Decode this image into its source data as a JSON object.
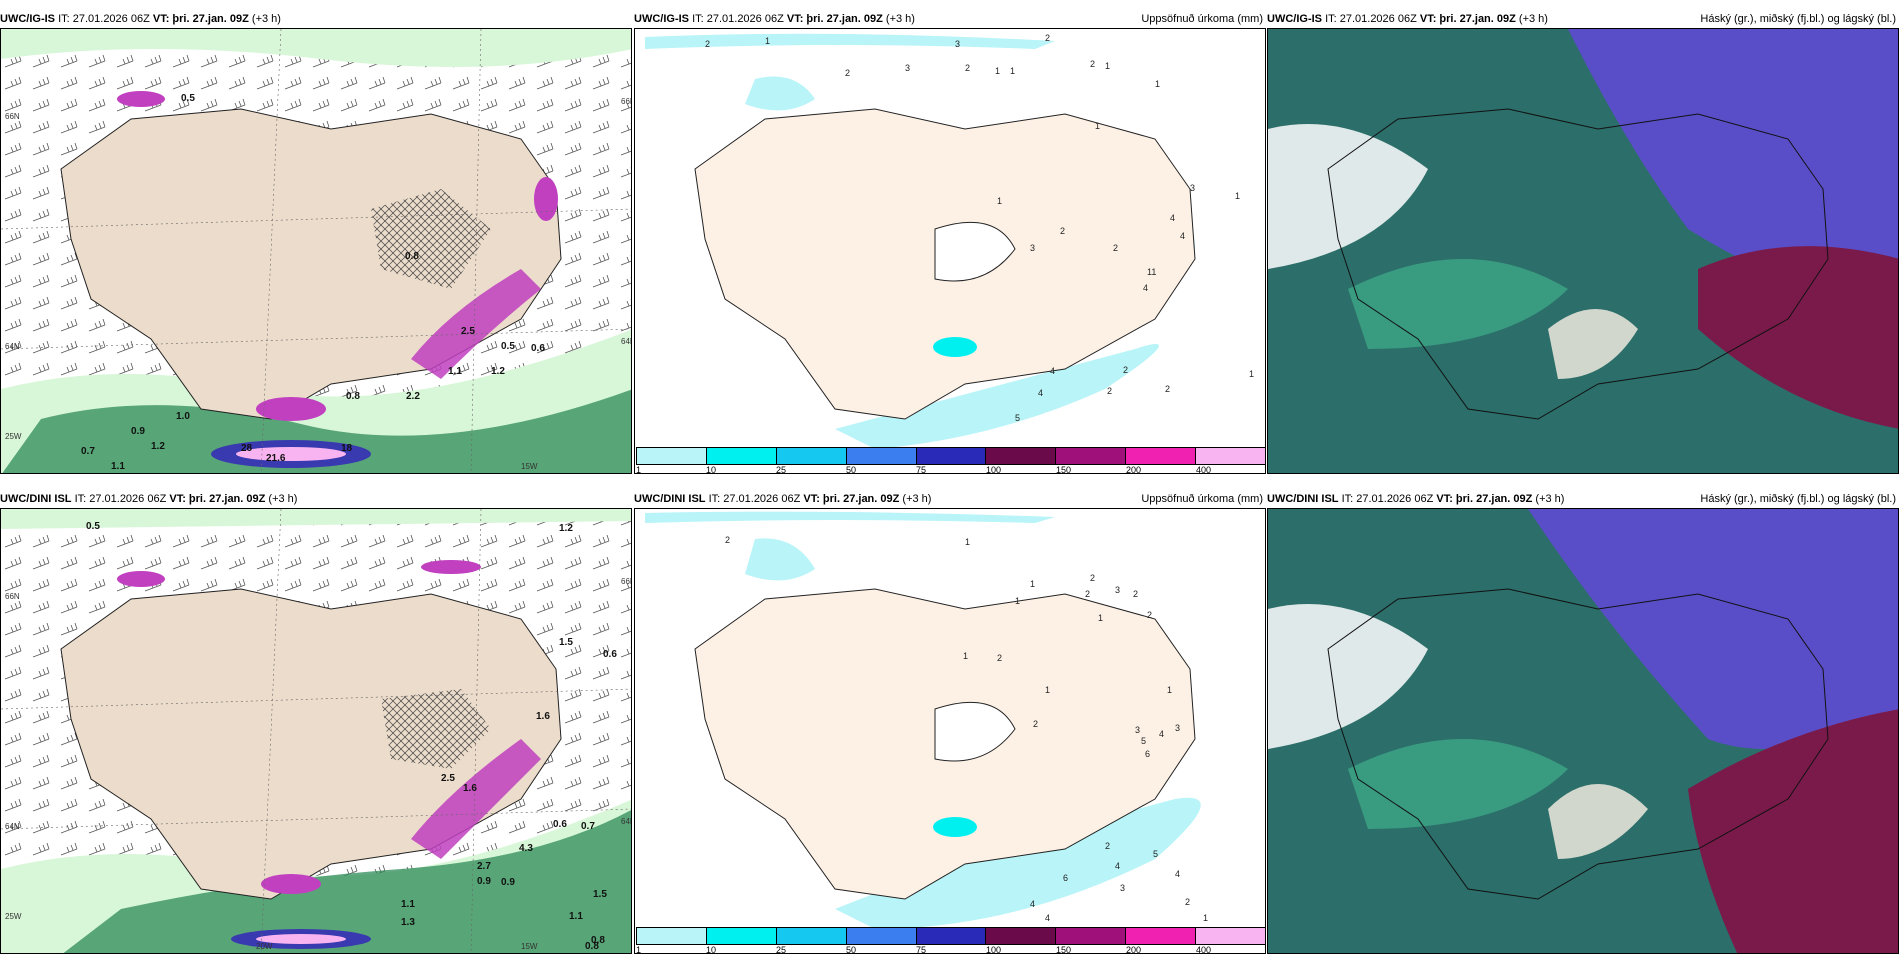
{
  "panels": [
    {
      "model": "UWC/IG-IS",
      "it_text": "IT: 27.01.2026 06Z",
      "vt_label": "VT:",
      "vt_value": "þri. 27.jan. 09Z",
      "lead": "(+3 h)",
      "right_label": "",
      "axis_labels": [
        "66N",
        "64N",
        "25W",
        "15W",
        "66N",
        "64N"
      ],
      "values": [
        "0.5",
        "0.6",
        "0.7",
        "0.8",
        "0.9",
        "1.0",
        "1.1",
        "1.2",
        "2.2",
        "2.5",
        "28",
        "18",
        "21.6",
        "0.5",
        "0.8",
        "1.1",
        "1.2"
      ]
    },
    {
      "model": "UWC/IG-IS",
      "it_text": "IT: 27.01.2026 06Z",
      "vt_label": "VT:",
      "vt_value": "þri. 27.jan. 09Z",
      "lead": "(+3 h)",
      "right_label": "Uppsöfnuð úrkoma (mm)",
      "values": [
        "2",
        "1",
        "3",
        "2",
        "3",
        "2",
        "1",
        "1",
        "2",
        "2",
        "1",
        "1",
        "1",
        "1",
        "2",
        "3",
        "2",
        "4",
        "4",
        "3",
        "4",
        "11",
        "4",
        "4",
        "2",
        "2",
        "2",
        "1",
        "5",
        "1"
      ]
    },
    {
      "model": "UWC/IG-IS",
      "it_text": "IT: 27.01.2026 06Z",
      "vt_label": "VT:",
      "vt_value": "þri. 27.jan. 09Z",
      "lead": "(+3 h)",
      "right_label": "Háský (gr.), miðský (fj.bl.) og lágský (bl.)"
    },
    {
      "model": "UWC/DINI ISL",
      "it_text": "IT: 27.01.2026 06Z",
      "vt_label": "VT:",
      "vt_value": "þri. 27.jan. 09Z",
      "lead": "(+3 h)",
      "right_label": "",
      "axis_labels": [
        "66N",
        "64N",
        "25W",
        "20W",
        "15W",
        "66N",
        "64N"
      ],
      "values": [
        "0.5",
        "1.2",
        "0.6",
        "1.5",
        "0.6",
        "0.7",
        "0.8",
        "1.5",
        "4.3",
        "0.9",
        "0.9",
        "1.1",
        "2.7",
        "0.8",
        "1.1",
        "1.6",
        "1.3",
        "2.5",
        "1.6"
      ]
    },
    {
      "model": "UWC/DINI ISL",
      "it_text": "IT: 27.01.2026 06Z",
      "vt_label": "VT:",
      "vt_value": "þri. 27.jan. 09Z",
      "lead": "(+3 h)",
      "right_label": "Uppsöfnuð úrkoma (mm)",
      "values": [
        "2",
        "1",
        "1",
        "1",
        "2",
        "3",
        "2",
        "2",
        "1",
        "2",
        "2",
        "1",
        "1",
        "1",
        "2",
        "3",
        "5",
        "6",
        "4",
        "3",
        "2",
        "6",
        "4",
        "3",
        "5",
        "4",
        "2",
        "1",
        "4",
        "4"
      ]
    },
    {
      "model": "UWC/DINI ISL",
      "it_text": "IT: 27.01.2026 06Z",
      "vt_label": "VT:",
      "vt_value": "þri. 27.jan. 09Z",
      "lead": "(+3 h)",
      "right_label": "Háský (gr.), miðský (fj.bl.) og lágský (bl.)"
    }
  ],
  "precip_colorbar": {
    "labels": [
      "1",
      "10",
      "25",
      "50",
      "75",
      "100",
      "150",
      "200",
      "400"
    ],
    "colors": [
      "#b8f4f8",
      "#00f0f0",
      "#14c8f0",
      "#3a7ef0",
      "#2a2ab8",
      "#6a0a4a",
      "#a0107a",
      "#f020b0",
      "#f8b4f0"
    ]
  },
  "colors": {
    "land": "#fdf1e6",
    "land_dark": "#ecdccb",
    "cyan": "#b8f4f8",
    "green_light": "#d8f6d8",
    "green": "#2e8b57",
    "magenta": "#c040c0",
    "cloud_low": "#2c6e6a",
    "cloud_mid": "#5a4ec8",
    "cloud_high": "#7a1a4a"
  }
}
